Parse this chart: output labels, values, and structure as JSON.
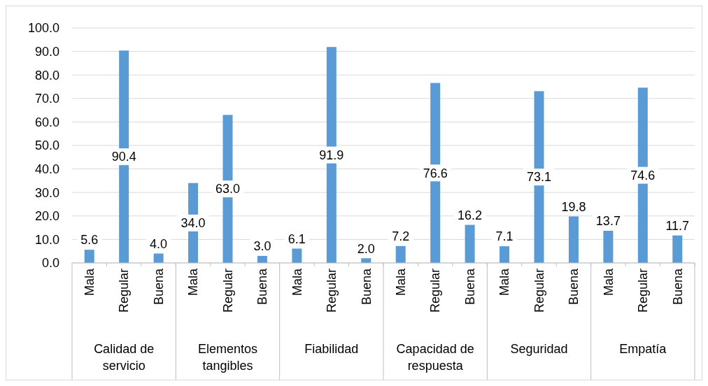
{
  "chart_data": {
    "type": "bar",
    "categories": [
      "Mala",
      "Regular",
      "Buena",
      "Mala",
      "Regular",
      "Buena",
      "Mala",
      "Regular",
      "Buena",
      "Mala",
      "Regular",
      "Buena",
      "Mala",
      "Regular",
      "Buena",
      "Mala",
      "Regular",
      "Buena"
    ],
    "values": [
      5.6,
      90.4,
      4.0,
      34.0,
      63.0,
      3.0,
      6.1,
      91.9,
      2.0,
      7.2,
      76.6,
      16.2,
      7.1,
      73.1,
      19.8,
      13.7,
      74.6,
      11.7
    ],
    "value_labels": [
      "5.6",
      "90.4",
      "4.0",
      "34.0",
      "63.0",
      "3.0",
      "6.1",
      "91.9",
      "2.0",
      "7.2",
      "76.6",
      "16.2",
      "7.1",
      "73.1",
      "19.8",
      "13.7",
      "74.6",
      "11.7"
    ],
    "color": "#5b9bd5",
    "annotations": [
      "Calidad de servicio",
      "Elementos tangibles",
      "Fiabilidad",
      "Capacidad de respuesta",
      "Seguridad",
      "Empatía"
    ],
    "ylim": [
      0,
      100
    ],
    "yticks": [
      {
        "value": 0,
        "label": "0.0"
      },
      {
        "value": 10,
        "label": "10.0"
      },
      {
        "value": 20,
        "label": "20.0"
      },
      {
        "value": 30,
        "label": "30.0"
      },
      {
        "value": 40,
        "label": "40.0"
      },
      {
        "value": 50,
        "label": "50.0"
      },
      {
        "value": 60,
        "label": "60.0"
      },
      {
        "value": 70,
        "label": "70.0"
      },
      {
        "value": 80,
        "label": "80.0"
      },
      {
        "value": 90,
        "label": "90.0"
      },
      {
        "value": 100,
        "label": "100.0"
      }
    ],
    "grid": true
  }
}
